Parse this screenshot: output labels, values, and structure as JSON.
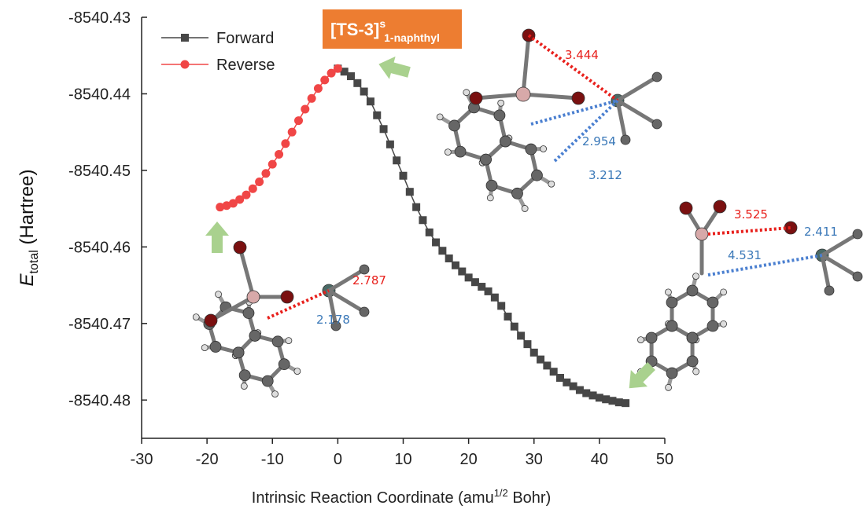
{
  "chart_data": {
    "type": "line",
    "title_main": "[TS-3]",
    "title_sup": "s",
    "title_sub": "1-naphthyl",
    "x_label": "Intrinsic Reaction Coordinate (amu",
    "x_label_sup": "1/2",
    "x_label_end": " Bohr)",
    "y_label": "E",
    "y_label_sub": "total",
    "y_label_end": " (Hartree)",
    "xlim": [
      -30,
      50
    ],
    "xticks": [
      -30,
      -20,
      -10,
      0,
      10,
      20,
      30,
      40,
      50
    ],
    "ylim": [
      -8540.485,
      -8540.43
    ],
    "yticks": [
      -8540.43,
      -8540.44,
      -8540.45,
      -8540.46,
      -8540.47,
      -8540.48
    ],
    "legend": "upper left",
    "series": [
      {
        "name": "Forward",
        "color": "#474747",
        "marker": "square",
        "x": [
          0,
          1,
          2,
          3,
          4,
          5,
          6,
          7,
          8,
          9,
          10,
          11,
          12,
          13,
          14,
          15,
          16,
          17,
          18,
          19,
          20,
          21,
          22,
          23,
          24,
          25,
          26,
          27,
          28,
          29,
          30,
          31,
          32,
          33,
          34,
          35,
          36,
          37,
          38,
          39,
          40,
          41,
          42,
          43,
          44
        ],
        "values": [
          -8540.4367,
          -8540.4371,
          -8540.4377,
          -8540.4386,
          -8540.4397,
          -8540.441,
          -8540.4428,
          -8540.4446,
          -8540.4466,
          -8540.4487,
          -8540.4507,
          -8540.4528,
          -8540.4548,
          -8540.4565,
          -8540.4581,
          -8540.4594,
          -8540.4605,
          -8540.4615,
          -8540.4624,
          -8540.4632,
          -8540.464,
          -8540.4646,
          -8540.4652,
          -8540.4658,
          -8540.4666,
          -8540.4677,
          -8540.4691,
          -8540.4704,
          -8540.4716,
          -8540.4727,
          -8540.4738,
          -8540.4747,
          -8540.4755,
          -8540.4763,
          -8540.4771,
          -8540.4777,
          -8540.4782,
          -8540.4787,
          -8540.4791,
          -8540.4794,
          -8540.4797,
          -8540.4799,
          -8540.4801,
          -8540.4803,
          -8540.4804
        ]
      },
      {
        "name": "Reverse",
        "color": "#f04646",
        "marker": "circle",
        "x": [
          -18,
          -17,
          -16,
          -15,
          -14,
          -13,
          -12,
          -11,
          -10,
          -9,
          -8,
          -7,
          -6,
          -5,
          -4,
          -3,
          -2,
          -1,
          0
        ],
        "values": [
          -8540.4548,
          -8540.4546,
          -8540.4543,
          -8540.4538,
          -8540.4532,
          -8540.4524,
          -8540.4515,
          -8540.4504,
          -8540.4492,
          -8540.4479,
          -8540.4465,
          -8540.445,
          -8540.4435,
          -8540.442,
          -8540.4406,
          -8540.4393,
          -8540.4382,
          -8540.4373,
          -8540.4367
        ]
      }
    ],
    "annotations": [
      {
        "text": "3.444",
        "color": "#e8201c"
      },
      {
        "text": "2.954",
        "color": "#3a78b8"
      },
      {
        "text": "3.212",
        "color": "#3a78b8"
      },
      {
        "text": "3.525",
        "color": "#e8201c"
      },
      {
        "text": "2.411",
        "color": "#3a78b8"
      },
      {
        "text": "4.531",
        "color": "#3a78b8"
      },
      {
        "text": "2.787",
        "color": "#e8201c"
      },
      {
        "text": "2.178",
        "color": "#3a78b8"
      }
    ]
  }
}
